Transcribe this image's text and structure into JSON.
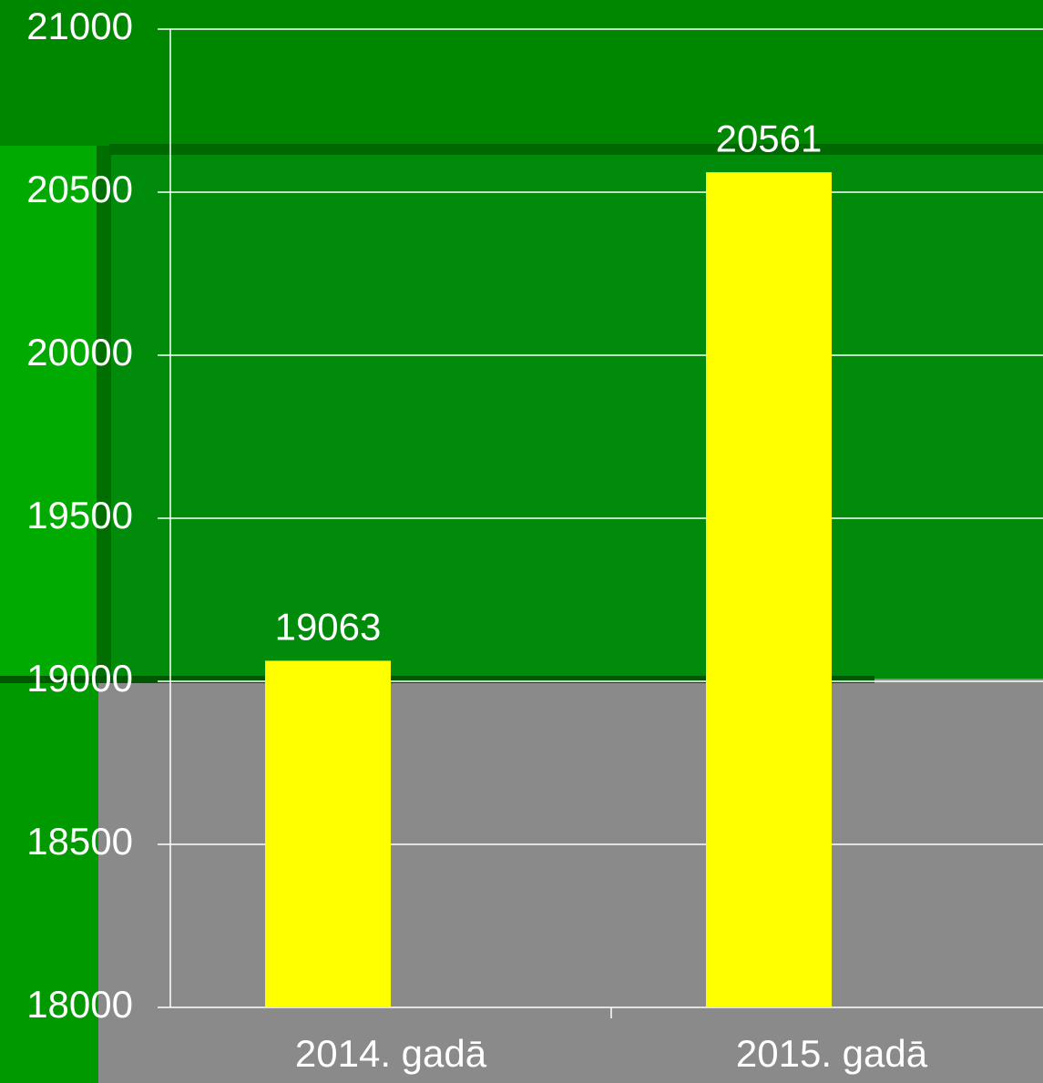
{
  "chart_data": {
    "type": "bar",
    "categories": [
      "2014. gadā",
      "2015. gadā"
    ],
    "values": [
      19063,
      20561
    ],
    "color": "#ffff00",
    "ylim": [
      18000,
      21000
    ],
    "yticks": [
      18000,
      18500,
      19000,
      19500,
      20000,
      20500,
      21000
    ],
    "grid": true
  }
}
